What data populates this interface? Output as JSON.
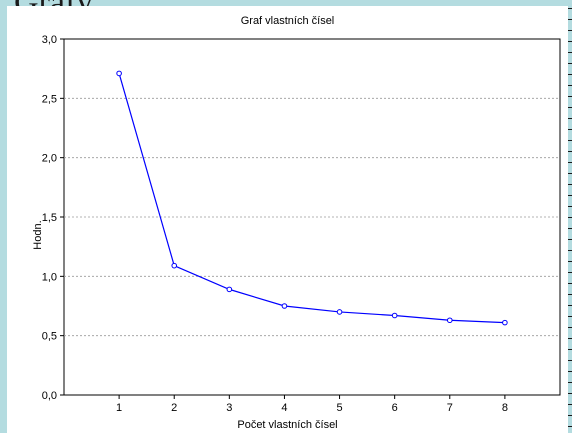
{
  "slide": {
    "title_fragment": "Grafy"
  },
  "chart_data": {
    "type": "line",
    "title": "Graf vlastních čísel",
    "xlabel": "Počet vlastních čísel",
    "ylabel": "Hodn.",
    "x": [
      1,
      2,
      3,
      4,
      5,
      6,
      7,
      8
    ],
    "series": [
      {
        "values": [
          2.71,
          1.09,
          0.89,
          0.75,
          0.7,
          0.67,
          0.63,
          0.61
        ]
      }
    ],
    "xlim": [
      0,
      9
    ],
    "ylim": [
      0,
      3
    ],
    "x_ticks": [
      "1",
      "2",
      "3",
      "4",
      "5",
      "6",
      "7",
      "8"
    ],
    "y_ticks": [
      "0,0",
      "0,5",
      "1,0",
      "1,5",
      "2,0",
      "2,5",
      "3,0"
    ],
    "y_tick_values": [
      0,
      0.5,
      1,
      1.5,
      2,
      2.5,
      3
    ],
    "grid": "horizontal dashed",
    "line_color": "#0000ff"
  }
}
